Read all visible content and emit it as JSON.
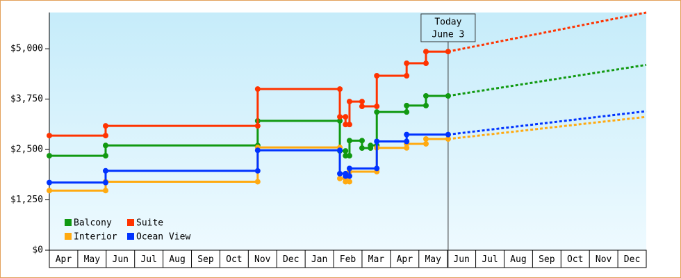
{
  "chart_data": {
    "type": "line",
    "step": true,
    "xlim": [
      0,
      21
    ],
    "xticks": [
      {
        "value": 0.5,
        "label": "Apr"
      },
      {
        "value": 1.5,
        "label": "May"
      },
      {
        "value": 2.5,
        "label": "Jun"
      },
      {
        "value": 3.5,
        "label": "Jul"
      },
      {
        "value": 4.5,
        "label": "Aug"
      },
      {
        "value": 5.5,
        "label": "Sep"
      },
      {
        "value": 6.5,
        "label": "Oct"
      },
      {
        "value": 7.5,
        "label": "Nov"
      },
      {
        "value": 8.5,
        "label": "Dec"
      },
      {
        "value": 9.5,
        "label": "Jan"
      },
      {
        "value": 10.5,
        "label": "Feb"
      },
      {
        "value": 11.5,
        "label": "Mar"
      },
      {
        "value": 12.5,
        "label": "Apr"
      },
      {
        "value": 13.5,
        "label": "May"
      },
      {
        "value": 14.5,
        "label": "Jun"
      },
      {
        "value": 15.5,
        "label": "Jul"
      },
      {
        "value": 16.5,
        "label": "Aug"
      },
      {
        "value": 17.5,
        "label": "Sep"
      },
      {
        "value": 18.5,
        "label": "Oct"
      },
      {
        "value": 19.5,
        "label": "Nov"
      },
      {
        "value": 20.5,
        "label": "Dec"
      }
    ],
    "ylim": [
      0,
      5900
    ],
    "yticks": [
      {
        "value": 0,
        "label": "$0"
      },
      {
        "value": 1250,
        "label": "$1,250"
      },
      {
        "value": 2500,
        "label": "$2,500"
      },
      {
        "value": 3750,
        "label": "$3,750"
      },
      {
        "value": 5000,
        "label": "$5,000"
      }
    ],
    "annotation": {
      "x": 14.03,
      "lines": [
        "Today",
        "June 3"
      ]
    },
    "legend": "lower left",
    "series": [
      {
        "name": "Balcony",
        "color": "#119911",
        "x": [
          0,
          1.98,
          1.98,
          7.33,
          7.33,
          10.22,
          10.22,
          10.42,
          10.42,
          10.56,
          10.56,
          11.0,
          11.0,
          11.3,
          11.3,
          11.52,
          11.52,
          12.57,
          12.57,
          13.25,
          13.25,
          14.03
        ],
        "values": [
          2345,
          2345,
          2600,
          2600,
          3210,
          3210,
          2465,
          2465,
          2345,
          2345,
          2720,
          2720,
          2535,
          2535,
          2600,
          2600,
          3430,
          3430,
          3590,
          3590,
          3830,
          3830
        ],
        "forecast_x": [
          14.03,
          21
        ],
        "forecast_values": [
          3830,
          4600
        ]
      },
      {
        "name": "Suite",
        "color": "#ff3300",
        "x": [
          0,
          1.98,
          1.98,
          7.33,
          7.33,
          10.22,
          10.22,
          10.42,
          10.42,
          10.56,
          10.56,
          11.0,
          11.0,
          11.52,
          11.52,
          12.57,
          12.57,
          13.25,
          13.25,
          14.03
        ],
        "values": [
          2845,
          2845,
          3086,
          3086,
          4000,
          4000,
          3310,
          3310,
          3120,
          3120,
          3690,
          3690,
          3570,
          3570,
          4330,
          4330,
          4640,
          4640,
          4930,
          4930
        ],
        "forecast_x": [
          14.03,
          21
        ],
        "forecast_values": [
          4930,
          5900
        ]
      },
      {
        "name": "Interior",
        "color": "#ffaa11",
        "x": [
          0,
          1.98,
          1.98,
          7.33,
          7.33,
          10.22,
          10.22,
          10.42,
          10.42,
          10.56,
          10.56,
          11.52,
          11.52,
          12.57,
          12.57,
          13.25,
          13.25,
          14.03
        ],
        "values": [
          1480,
          1480,
          1700,
          1700,
          2550,
          2550,
          1780,
          1780,
          1700,
          1700,
          1950,
          1950,
          2540,
          2540,
          2640,
          2640,
          2760,
          2760
        ],
        "forecast_x": [
          14.03,
          21
        ],
        "forecast_values": [
          2760,
          3310
        ]
      },
      {
        "name": "Ocean View",
        "color": "#0033ff",
        "x": [
          0,
          1.98,
          1.98,
          7.33,
          7.33,
          10.22,
          10.22,
          10.42,
          10.42,
          10.56,
          10.56,
          11.52,
          11.52,
          12.57,
          12.57,
          14.03
        ],
        "values": [
          1680,
          1680,
          1970,
          1970,
          2480,
          2480,
          1900,
          1900,
          1840,
          1840,
          2030,
          2030,
          2700,
          2700,
          2870,
          2870
        ],
        "forecast_x": [
          14.03,
          21
        ],
        "forecast_values": [
          2870,
          3450
        ]
      }
    ]
  }
}
